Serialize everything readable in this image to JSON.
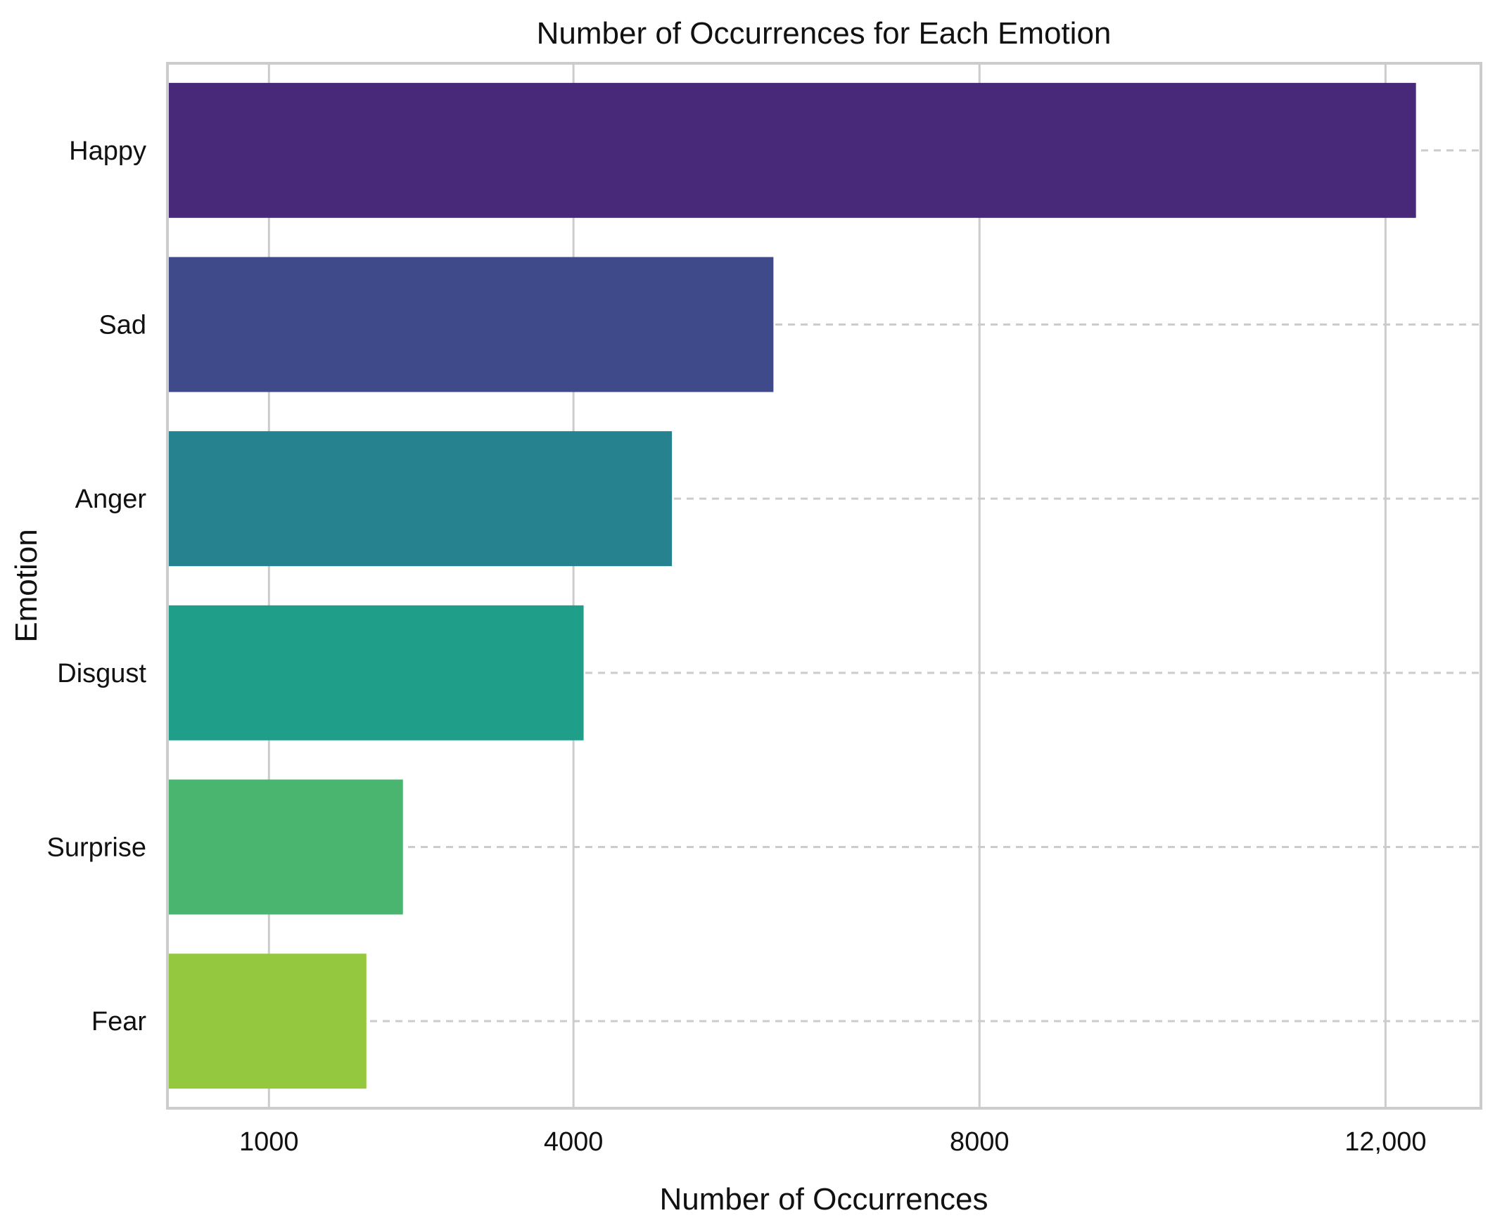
{
  "chart_data": {
    "type": "bar",
    "orientation": "horizontal",
    "title": "Number of Occurrences for Each Emotion",
    "xlabel": "Number of Occurrences",
    "ylabel": "Emotion",
    "categories": [
      "Happy",
      "Sad",
      "Anger",
      "Disgust",
      "Surprise",
      "Fear"
    ],
    "values": [
      12300,
      5970,
      4970,
      4100,
      2320,
      1960
    ],
    "colors": [
      "#482878",
      "#3e4a89",
      "#26828e",
      "#1f9e89",
      "#4ab56e",
      "#94c83e"
    ],
    "xticks": [
      1000,
      4000,
      8000,
      12000
    ],
    "xtick_labels": [
      "1000",
      "4000",
      "8000",
      "12,000"
    ],
    "xlim": [
      0,
      12940
    ],
    "grid": {
      "vertical": "solid",
      "horizontal": "dashed"
    },
    "legend": "none"
  }
}
